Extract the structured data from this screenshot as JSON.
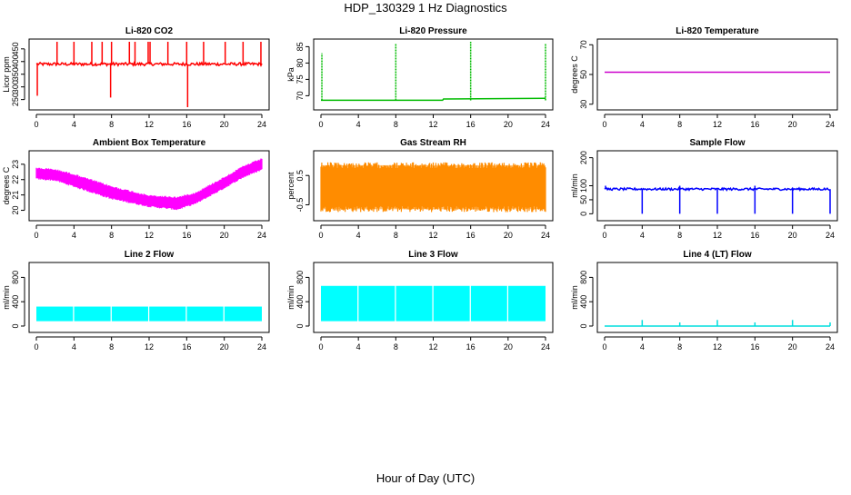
{
  "title": "HDP_130329  1 Hz Diagnostics",
  "xlabel": "Hour of Day (UTC)",
  "chart_data": [
    {
      "id": "co2",
      "type": "line",
      "title": "Li-820 CO2",
      "ylabel": "Licor ppm",
      "color": "#ff0000",
      "xlim": [
        0,
        24
      ],
      "xticks": [
        0,
        4,
        8,
        12,
        16,
        20,
        24
      ],
      "ylim": [
        220,
        478
      ],
      "yticks": [
        250,
        300,
        350,
        400,
        450
      ],
      "baseline": 390,
      "noise": 6,
      "spikes": [
        {
          "x": 0.1,
          "y": 265
        },
        {
          "x": 2.2,
          "y": 478
        },
        {
          "x": 4.0,
          "y": 478
        },
        {
          "x": 5.9,
          "y": 478
        },
        {
          "x": 7.0,
          "y": 478
        },
        {
          "x": 7.9,
          "y": 258
        },
        {
          "x": 8.0,
          "y": 478
        },
        {
          "x": 9.9,
          "y": 478
        },
        {
          "x": 10.5,
          "y": 478
        },
        {
          "x": 11.9,
          "y": 478
        },
        {
          "x": 12.1,
          "y": 478
        },
        {
          "x": 14.0,
          "y": 478
        },
        {
          "x": 16.0,
          "y": 478
        },
        {
          "x": 16.1,
          "y": 220
        },
        {
          "x": 17.8,
          "y": 478
        },
        {
          "x": 20.1,
          "y": 478
        },
        {
          "x": 22.0,
          "y": 478
        },
        {
          "x": 23.9,
          "y": 478
        }
      ]
    },
    {
      "id": "pressure",
      "type": "line",
      "title": "Li-820 Pressure",
      "ylabel": "kPa",
      "color": "#00bb00",
      "xlim": [
        0,
        24
      ],
      "xticks": [
        0,
        4,
        8,
        12,
        16,
        20,
        24
      ],
      "ylim": [
        66.5,
        86.5
      ],
      "yticks": [
        70,
        75,
        80,
        85
      ],
      "series": [
        {
          "x": 0.0,
          "y": 68.6
        },
        {
          "x": 13.0,
          "y": 68.6
        },
        {
          "x": 13.1,
          "y": 69.0
        },
        {
          "x": 24.0,
          "y": 69.2
        }
      ],
      "spikes": [
        {
          "x": 0.1,
          "y": 83
        },
        {
          "x": 8.0,
          "y": 86
        },
        {
          "x": 16.0,
          "y": 86.5
        },
        {
          "x": 24.0,
          "y": 86
        }
      ]
    },
    {
      "id": "temp",
      "type": "line",
      "title": "Li-820 Temperature",
      "ylabel": "degrees C",
      "color": "#cc00cc",
      "xlim": [
        0,
        24
      ],
      "xticks": [
        0,
        4,
        8,
        12,
        16,
        20,
        24
      ],
      "ylim": [
        28,
        72
      ],
      "yticks": [
        30,
        50,
        70
      ],
      "series": [
        {
          "x": 0,
          "y": 51.5
        },
        {
          "x": 24,
          "y": 51.5
        }
      ]
    },
    {
      "id": "ambient",
      "type": "area",
      "title": "Ambient Box Temperature",
      "ylabel": "degrees C",
      "color": "#ff00ff",
      "xlim": [
        0,
        24
      ],
      "xticks": [
        0,
        4,
        8,
        12,
        16,
        20,
        24
      ],
      "ylim": [
        19.5,
        23.7
      ],
      "yticks": [
        20,
        21,
        22,
        23
      ],
      "upper": [
        {
          "x": 0,
          "y": 22.8
        },
        {
          "x": 2,
          "y": 22.7
        },
        {
          "x": 4,
          "y": 22.4
        },
        {
          "x": 8,
          "y": 21.6
        },
        {
          "x": 12,
          "y": 21.0
        },
        {
          "x": 15,
          "y": 20.9
        },
        {
          "x": 17,
          "y": 21.2
        },
        {
          "x": 20,
          "y": 22.2
        },
        {
          "x": 22,
          "y": 22.9
        },
        {
          "x": 24,
          "y": 23.4
        }
      ],
      "lower": [
        {
          "x": 0,
          "y": 22.0
        },
        {
          "x": 2,
          "y": 21.9
        },
        {
          "x": 4,
          "y": 21.5
        },
        {
          "x": 8,
          "y": 20.7
        },
        {
          "x": 12,
          "y": 20.2
        },
        {
          "x": 15,
          "y": 20.0
        },
        {
          "x": 17,
          "y": 20.4
        },
        {
          "x": 20,
          "y": 21.4
        },
        {
          "x": 22,
          "y": 22.1
        },
        {
          "x": 24,
          "y": 22.6
        }
      ]
    },
    {
      "id": "rh",
      "type": "area",
      "title": "Gas Stream RH",
      "ylabel": "percent",
      "color": "#ff8c00",
      "xlim": [
        0,
        24
      ],
      "xticks": [
        0,
        4,
        8,
        12,
        16,
        20,
        24
      ],
      "ylim": [
        -0.95,
        1.25
      ],
      "yticks": [
        -0.5,
        0.5
      ],
      "upper": [
        {
          "x": 0,
          "y": 0.95
        },
        {
          "x": 24,
          "y": 0.95
        }
      ],
      "lower": [
        {
          "x": 0,
          "y": -0.75
        },
        {
          "x": 24,
          "y": -0.75
        }
      ]
    },
    {
      "id": "sample",
      "type": "line",
      "title": "Sample Flow",
      "ylabel": "ml/min",
      "color": "#0000ff",
      "xlim": [
        0,
        24
      ],
      "xticks": [
        0,
        4,
        8,
        12,
        16,
        20,
        24
      ],
      "ylim": [
        -15,
        215
      ],
      "yticks": [
        0,
        50,
        100,
        200
      ],
      "baseline": 88,
      "noise": 4,
      "spikes": [
        {
          "x": 4.0,
          "y": 0
        },
        {
          "x": 8.0,
          "y": 0
        },
        {
          "x": 12.0,
          "y": 0
        },
        {
          "x": 16.0,
          "y": 0
        },
        {
          "x": 20.0,
          "y": 0
        },
        {
          "x": 24.0,
          "y": 0
        },
        {
          "x": 8.0,
          "y": 100
        },
        {
          "x": 16.0,
          "y": 100
        },
        {
          "x": 0.1,
          "y": 100
        }
      ]
    },
    {
      "id": "line2",
      "type": "bar",
      "title": "Line 2 Flow",
      "ylabel": "ml/min",
      "color": "#00ffff",
      "xlim": [
        0,
        24
      ],
      "xticks": [
        0,
        4,
        8,
        12,
        16,
        20,
        24
      ],
      "ylim": [
        -60,
        1000
      ],
      "yticks": [
        0,
        400,
        800
      ],
      "top": 320,
      "bottom": 80,
      "gaps": [
        3.9,
        7.9,
        11.9,
        15.9,
        19.9
      ]
    },
    {
      "id": "line3",
      "type": "bar",
      "title": "Line 3 Flow",
      "ylabel": "ml/min",
      "color": "#00ffff",
      "xlim": [
        0,
        24
      ],
      "xticks": [
        0,
        4,
        8,
        12,
        16,
        20,
        24
      ],
      "ylim": [
        -60,
        1000
      ],
      "yticks": [
        0,
        400,
        800
      ],
      "top": 660,
      "bottom": 80,
      "gaps": [
        3.9,
        7.9,
        11.9,
        15.9,
        19.9
      ]
    },
    {
      "id": "line4",
      "type": "line",
      "title": "Line 4 (LT) Flow",
      "ylabel": "ml/min",
      "color": "#00dddd",
      "xlim": [
        0,
        24
      ],
      "xticks": [
        0,
        4,
        8,
        12,
        16,
        20,
        24
      ],
      "ylim": [
        -60,
        1000
      ],
      "yticks": [
        0,
        400,
        800
      ],
      "baseline": 0,
      "noise": 0,
      "spikes": [
        {
          "x": 4.0,
          "y": 100
        },
        {
          "x": 8.0,
          "y": 60
        },
        {
          "x": 12.0,
          "y": 100
        },
        {
          "x": 16.0,
          "y": 60
        },
        {
          "x": 20.0,
          "y": 100
        },
        {
          "x": 24.0,
          "y": 60
        }
      ]
    }
  ]
}
